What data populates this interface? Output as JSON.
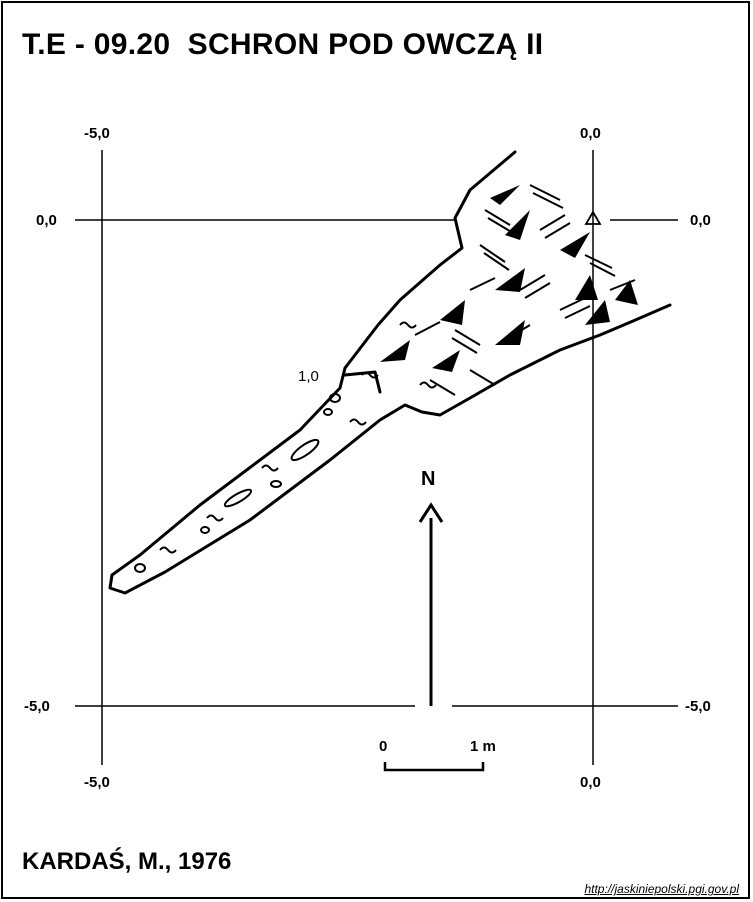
{
  "title": "T.E - 09.20  SCHRON POD OWCZĄ II",
  "grid": {
    "top_left": "-5,0",
    "top_right": "0,0",
    "left_top": "0,0",
    "right_top": "0,0",
    "left_bottom": "-5,0",
    "right_bottom": "-5,0",
    "bottom_left": "-5,0",
    "bottom_right": "0,0"
  },
  "north_label": "N",
  "depth_label": "1,0",
  "scale": {
    "start": "0",
    "end": "1 m"
  },
  "credit": "KARDAŚ, M., 1976",
  "source_url": "http://jaskiniepolski.pgi.gov.pl",
  "colors": {
    "ink": "#000000",
    "paper": "#ffffff"
  }
}
